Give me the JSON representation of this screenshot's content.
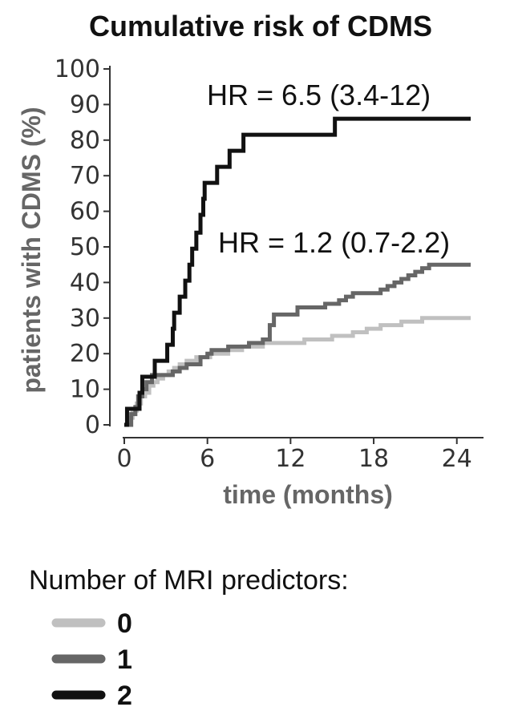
{
  "chart_data": {
    "type": "line",
    "step": true,
    "title": "Cumulative risk of CDMS",
    "xlabel": "time (months)",
    "ylabel": "patients with CDMS (%)",
    "xlim": [
      0,
      25
    ],
    "ylim": [
      0,
      100
    ],
    "x_ticks": [
      0,
      6,
      12,
      18,
      24
    ],
    "y_ticks": [
      0,
      10,
      20,
      30,
      40,
      50,
      60,
      70,
      80,
      90,
      100
    ],
    "grid": false,
    "annotations": [
      {
        "text": "HR = 6.5 (3.4-12)",
        "series": "2"
      },
      {
        "text": "HR = 1.2 (0.7-2.2)",
        "series": "1"
      }
    ],
    "legend": {
      "title": "Number of MRI predictors:",
      "placement": "bottom"
    },
    "series": [
      {
        "name": "0",
        "color": "#c0c0c0",
        "points": [
          [
            0,
            0
          ],
          [
            0.3,
            2
          ],
          [
            0.6,
            4
          ],
          [
            0.9,
            6
          ],
          [
            1.2,
            8
          ],
          [
            1.5,
            9
          ],
          [
            1.8,
            11
          ],
          [
            2.1,
            12
          ],
          [
            2.4,
            13
          ],
          [
            2.8,
            14
          ],
          [
            3.2,
            15
          ],
          [
            3.6,
            16
          ],
          [
            4.0,
            17
          ],
          [
            4.5,
            18
          ],
          [
            5.2,
            19
          ],
          [
            6.2,
            20
          ],
          [
            7.5,
            21
          ],
          [
            8.5,
            22
          ],
          [
            10.0,
            23
          ],
          [
            13.0,
            24
          ],
          [
            15.0,
            25
          ],
          [
            16.5,
            26
          ],
          [
            17.5,
            27
          ],
          [
            18.5,
            28
          ],
          [
            20.0,
            29
          ],
          [
            21.5,
            30
          ],
          [
            25.0,
            30
          ]
        ]
      },
      {
        "name": "1",
        "color": "#666666",
        "points": [
          [
            0,
            0
          ],
          [
            0.5,
            3
          ],
          [
            0.8,
            5
          ],
          [
            1.0,
            8
          ],
          [
            1.3,
            10
          ],
          [
            1.6,
            12
          ],
          [
            2.0,
            14
          ],
          [
            3.5,
            15
          ],
          [
            4.0,
            16
          ],
          [
            4.5,
            17
          ],
          [
            5.5,
            19
          ],
          [
            6.0,
            20
          ],
          [
            6.3,
            21
          ],
          [
            7.5,
            22
          ],
          [
            9.0,
            23
          ],
          [
            10.0,
            24
          ],
          [
            10.5,
            28
          ],
          [
            10.8,
            31
          ],
          [
            12.5,
            33
          ],
          [
            14.5,
            34
          ],
          [
            15.5,
            35
          ],
          [
            16.0,
            36
          ],
          [
            16.5,
            37
          ],
          [
            18.5,
            38
          ],
          [
            19.0,
            39
          ],
          [
            19.5,
            40
          ],
          [
            20.0,
            41
          ],
          [
            20.5,
            42
          ],
          [
            21.0,
            43
          ],
          [
            21.5,
            44
          ],
          [
            22.0,
            45
          ],
          [
            25.0,
            45
          ]
        ]
      },
      {
        "name": "2",
        "color": "#111111",
        "points": [
          [
            0,
            0
          ],
          [
            0.2,
            4.5
          ],
          [
            1.1,
            9
          ],
          [
            1.3,
            13.5
          ],
          [
            2.2,
            18
          ],
          [
            3.1,
            22.5
          ],
          [
            3.5,
            27
          ],
          [
            3.6,
            31.5
          ],
          [
            4.0,
            36
          ],
          [
            4.4,
            40.5
          ],
          [
            4.7,
            45
          ],
          [
            4.9,
            49.5
          ],
          [
            5.2,
            54
          ],
          [
            5.5,
            59
          ],
          [
            5.7,
            63.5
          ],
          [
            5.8,
            68
          ],
          [
            6.7,
            72.5
          ],
          [
            7.6,
            77
          ],
          [
            8.6,
            81.5
          ],
          [
            15.2,
            86
          ],
          [
            25.0,
            86
          ]
        ]
      }
    ]
  }
}
